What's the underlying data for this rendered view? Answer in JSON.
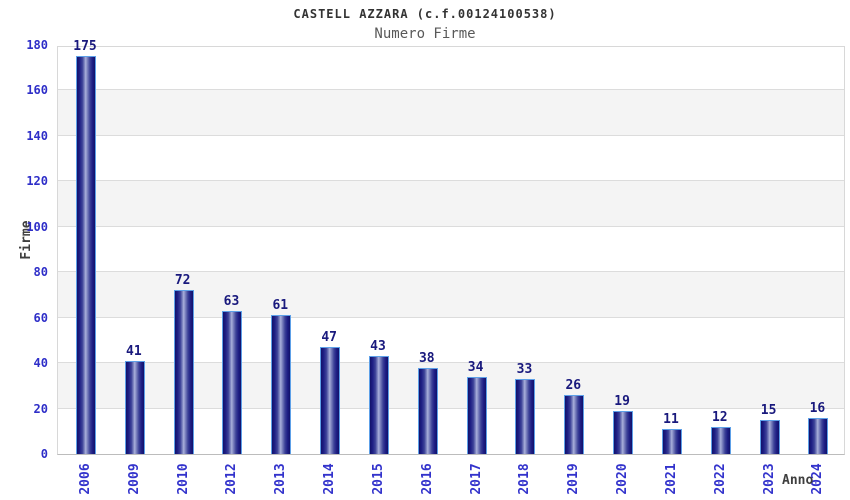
{
  "chart_data": {
    "type": "bar",
    "title": "CASTELL AZZARA (c.f.00124100538)",
    "subtitle": "Numero Firme",
    "xlabel": "Anno",
    "ylabel": "Firme",
    "categories": [
      "2006",
      "2009",
      "2010",
      "2012",
      "2013",
      "2014",
      "2015",
      "2016",
      "2017",
      "2018",
      "2019",
      "2020",
      "2021",
      "2022",
      "2023",
      "2024"
    ],
    "values": [
      175,
      41,
      72,
      63,
      61,
      47,
      43,
      38,
      34,
      33,
      26,
      19,
      11,
      12,
      15,
      16
    ],
    "ylim": [
      0,
      180
    ],
    "yticks": [
      0,
      20,
      40,
      60,
      80,
      100,
      120,
      140,
      160,
      180
    ],
    "grid": true,
    "band_shading": "alternating",
    "legend": "none",
    "colors": {
      "bar_dark": "#12126a",
      "bar_mid": "#3c4298",
      "bar_light": "#aab0dc",
      "bar_border": "#5da0e8",
      "value_label": "#19197d",
      "tick_label": "#2e2ec8",
      "title": "#333333",
      "subtitle": "#595959",
      "axis_label": "#3f3f3f",
      "band": "#f4f4f4",
      "gridline": "#dcdcdc"
    }
  }
}
